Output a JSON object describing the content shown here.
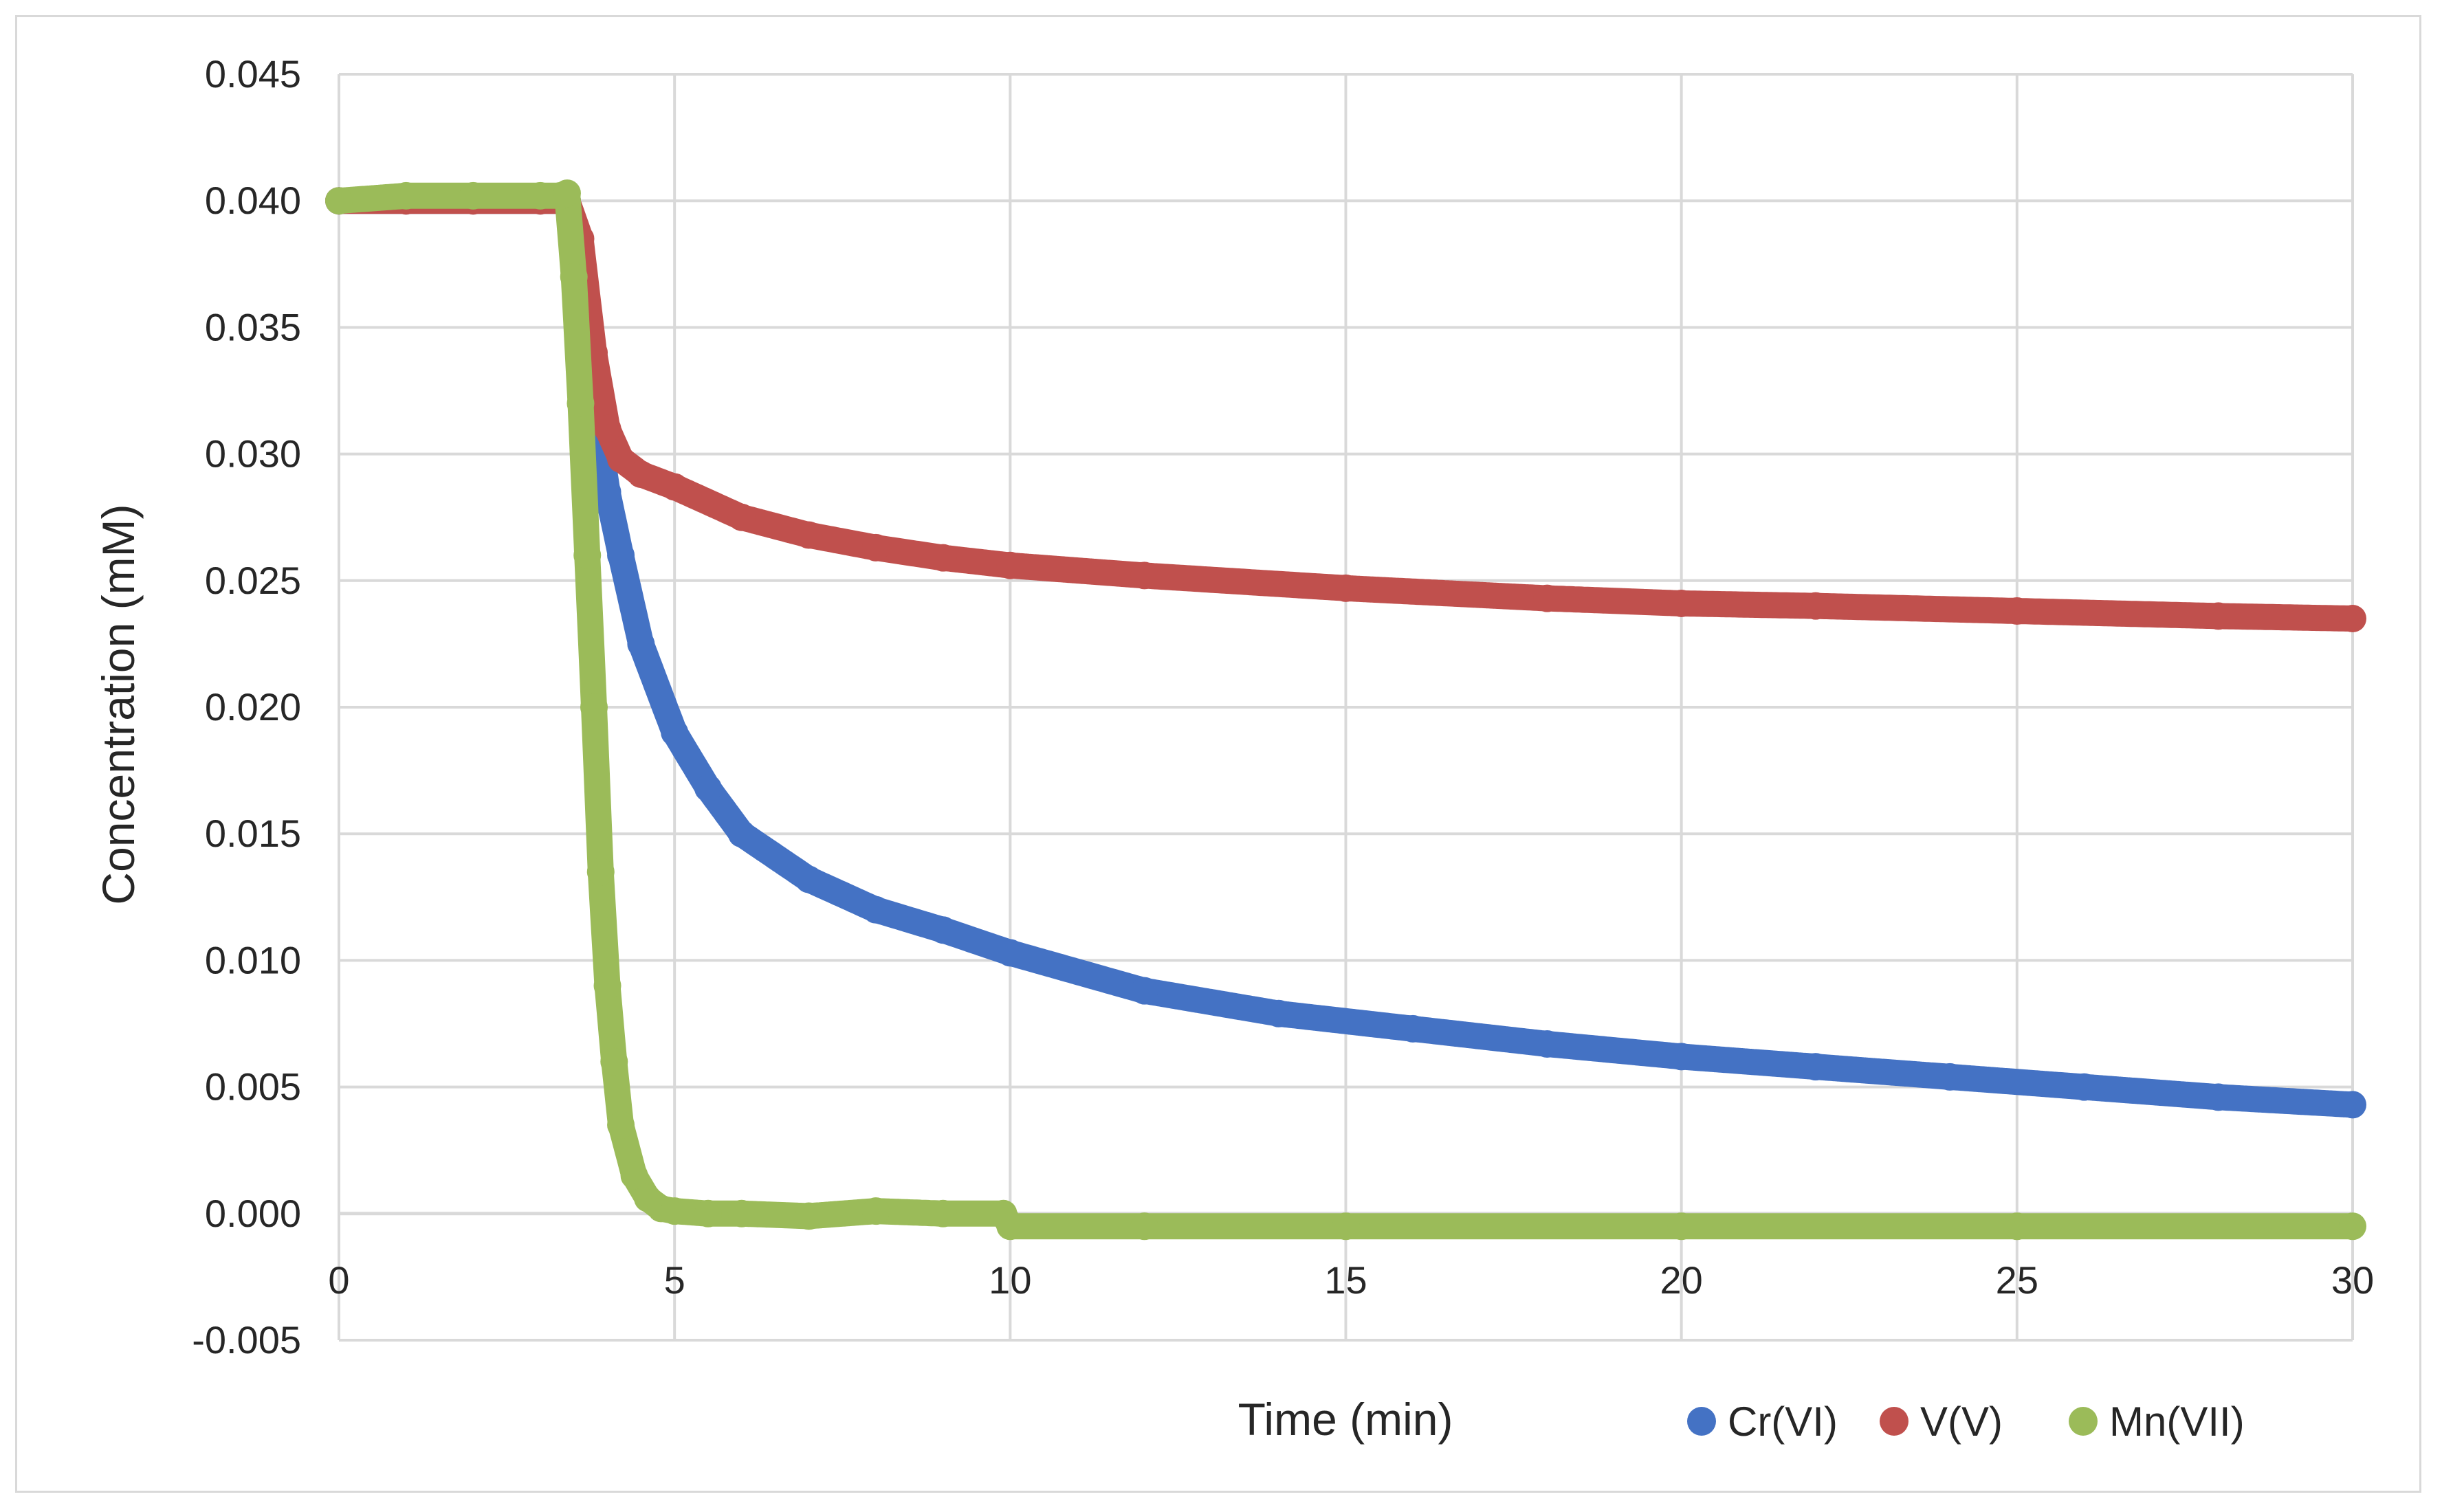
{
  "chart_data": {
    "type": "scatter",
    "title": "",
    "xlabel": "Time (min)",
    "ylabel": "Concentration (mM)",
    "xlim": [
      0,
      30
    ],
    "ylim": [
      -0.005,
      0.045
    ],
    "x_ticks": [
      0,
      5,
      10,
      15,
      20,
      25,
      30
    ],
    "x_tick_labels": [
      "0",
      "5",
      "10",
      "15",
      "20",
      "25",
      "30"
    ],
    "y_ticks": [
      -0.005,
      0,
      0.005,
      0.01,
      0.015,
      0.02,
      0.025,
      0.03,
      0.035,
      0.04,
      0.045
    ],
    "y_tick_labels": [
      "-0.005",
      "0.000",
      "0.005",
      "0.010",
      "0.015",
      "0.020",
      "0.025",
      "0.030",
      "0.035",
      "0.040",
      "0.045"
    ],
    "grid": true,
    "legend_position": "bottom-right",
    "series": [
      {
        "name": "Cr(VI)",
        "color": "#4472c4",
        "x": [
          0,
          1,
          2,
          3,
          3.4,
          3.6,
          3.8,
          4,
          4.2,
          4.5,
          5,
          5.5,
          6,
          7,
          8,
          9,
          10,
          12,
          14,
          16,
          18,
          20,
          22,
          24,
          26,
          28,
          30
        ],
        "y": [
          0.04,
          0.04,
          0.04,
          0.04,
          0.04,
          0.038,
          0.032,
          0.0285,
          0.026,
          0.0225,
          0.019,
          0.0168,
          0.015,
          0.0132,
          0.012,
          0.0112,
          0.0103,
          0.0088,
          0.0079,
          0.0073,
          0.0067,
          0.0062,
          0.0058,
          0.0054,
          0.005,
          0.0046,
          0.0043
        ]
      },
      {
        "name": "V(V)",
        "color": "#c0504d",
        "x": [
          0,
          1,
          2,
          3,
          3.4,
          3.6,
          3.8,
          4,
          4.2,
          4.5,
          5,
          6,
          7,
          8,
          9,
          10,
          12,
          15,
          18,
          20,
          22,
          25,
          28,
          30
        ],
        "y": [
          0.04,
          0.04,
          0.04,
          0.04,
          0.04,
          0.0385,
          0.034,
          0.031,
          0.0298,
          0.0292,
          0.0287,
          0.0275,
          0.0268,
          0.0263,
          0.0259,
          0.0256,
          0.0252,
          0.0247,
          0.0243,
          0.0241,
          0.024,
          0.0238,
          0.0236,
          0.0235
        ]
      },
      {
        "name": "Mn(VII)",
        "color": "#9bbb59",
        "x": [
          0,
          1,
          2,
          3,
          3.3,
          3.4,
          3.5,
          3.6,
          3.7,
          3.8,
          3.9,
          4,
          4.1,
          4.2,
          4.4,
          4.6,
          4.8,
          5,
          5.5,
          6,
          7,
          8,
          9,
          9.9,
          10,
          12,
          15,
          20,
          25,
          30
        ],
        "y": [
          0.04,
          0.0402,
          0.0402,
          0.0402,
          0.0402,
          0.0403,
          0.037,
          0.032,
          0.026,
          0.02,
          0.0135,
          0.009,
          0.006,
          0.0035,
          0.0015,
          0.0006,
          0.0002,
          0.0001,
          0.0,
          0.0,
          -0.0001,
          0.0001,
          0.0,
          0.0,
          -0.0005,
          -0.0005,
          -0.0005,
          -0.0005,
          -0.0005,
          -0.0005
        ]
      }
    ]
  }
}
